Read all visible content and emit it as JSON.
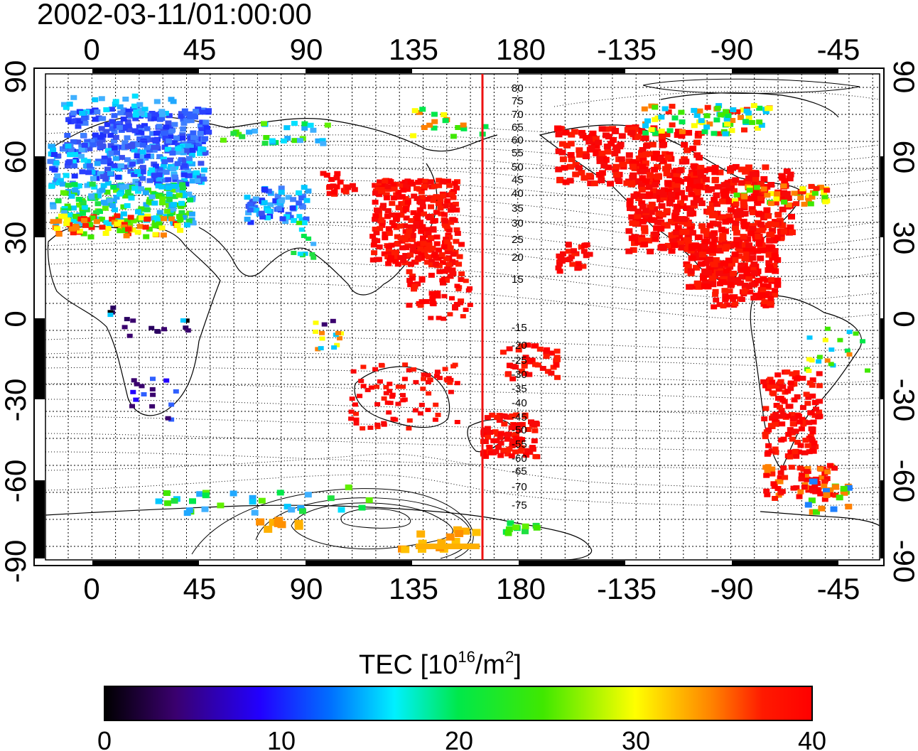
{
  "header": {
    "timestamp": "2002-03-11/01:00:00"
  },
  "axes": {
    "lon_top": [
      "0",
      "45",
      "90",
      "135",
      "180",
      "-135",
      "-90",
      "-45"
    ],
    "lon_bottom": [
      "0",
      "45",
      "90",
      "135",
      "180",
      "-135",
      "-90",
      "-45"
    ],
    "lat_left": [
      "90",
      "60",
      "30",
      "0",
      "-30",
      "-60",
      "-90"
    ],
    "lat_right": [
      "90",
      "60",
      "30",
      "0",
      "-30",
      "-60",
      "-90"
    ]
  },
  "contour_labels": {
    "north": [
      "80",
      "75",
      "70",
      "65",
      "60",
      "55",
      "50",
      "45",
      "40",
      "35",
      "30",
      "25",
      "20",
      "15"
    ],
    "south": [
      "-15",
      "-20",
      "-25",
      "-30",
      "-35",
      "-40",
      "-45",
      "-50",
      "-55",
      "-60",
      "-65",
      "-70",
      "-75"
    ]
  },
  "colorbar": {
    "title_main": "TEC  [10",
    "title_sup": "16",
    "title_unit": "/m",
    "title_sup2": "2",
    "title_close": "]",
    "tick_labels": [
      "0",
      "10",
      "20",
      "30",
      "40"
    ],
    "stops": [
      "#000000",
      "#3a006e",
      "#2200ff",
      "#0070ff",
      "#00f0ff",
      "#00e84a",
      "#40e800",
      "#ffff00",
      "#ff8000",
      "#ff1a00",
      "#ff0000"
    ]
  },
  "map": {
    "terminator_color": "#ee1111",
    "legend_range": [
      0,
      40
    ]
  }
}
